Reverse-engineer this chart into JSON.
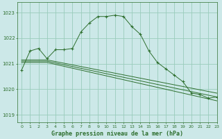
{
  "title": "Graphe pression niveau de la mer (hPa)",
  "background_color": "#cce8e8",
  "grid_color": "#99ccbb",
  "line_color": "#2d6e2d",
  "xlim": [
    -0.5,
    23
  ],
  "ylim": [
    1018.7,
    1023.4
  ],
  "yticks": [
    1019,
    1020,
    1021,
    1022,
    1023
  ],
  "xticks": [
    0,
    1,
    2,
    3,
    4,
    5,
    6,
    7,
    8,
    9,
    10,
    11,
    12,
    13,
    14,
    15,
    16,
    17,
    18,
    19,
    20,
    21,
    22,
    23
  ],
  "series": [
    {
      "x": [
        0,
        1,
        2,
        3,
        4,
        5,
        6,
        7,
        8,
        9,
        10,
        11,
        12,
        13,
        14,
        15,
        16,
        17,
        18,
        19,
        20,
        21,
        22,
        23
      ],
      "y": [
        1020.75,
        1021.5,
        1021.6,
        1021.2,
        1021.55,
        1021.55,
        1021.6,
        1022.25,
        1022.6,
        1022.85,
        1022.85,
        1022.9,
        1022.85,
        1022.45,
        1022.15,
        1021.5,
        1021.05,
        1020.8,
        1020.55,
        1020.3,
        1019.85,
        1019.8,
        1019.65,
        1019.7
      ]
    },
    {
      "x": [
        0,
        3,
        23
      ],
      "y": [
        1021.15,
        1021.15,
        1019.85
      ]
    },
    {
      "x": [
        0,
        3,
        23
      ],
      "y": [
        1021.1,
        1021.1,
        1019.7
      ]
    },
    {
      "x": [
        0,
        3,
        23
      ],
      "y": [
        1021.05,
        1021.05,
        1019.55
      ]
    }
  ]
}
